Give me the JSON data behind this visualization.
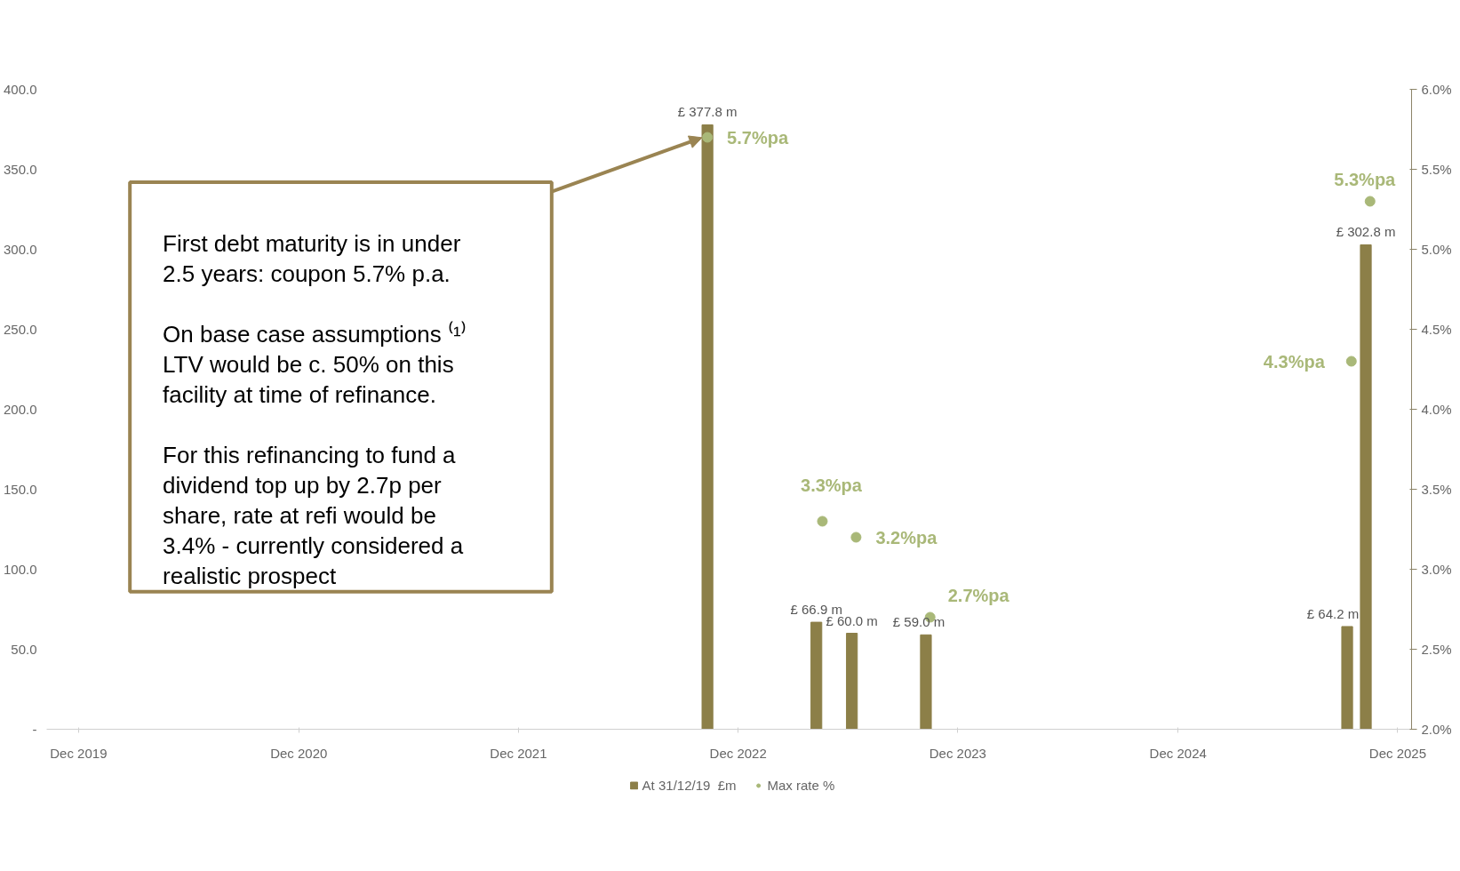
{
  "chart_data": {
    "type": "bar",
    "xlim": [
      "2019-11-08",
      "2026-01-23"
    ],
    "xticks": [
      {
        "value": "2019-12-31",
        "label": "Dec 2019"
      },
      {
        "value": "2020-12-31",
        "label": "Dec 2020"
      },
      {
        "value": "2021-12-31",
        "label": "Dec 2021"
      },
      {
        "value": "2022-12-31",
        "label": "Dec 2022"
      },
      {
        "value": "2023-12-31",
        "label": "Dec 2023"
      },
      {
        "value": "2024-12-31",
        "label": "Dec 2024"
      },
      {
        "value": "2025-12-31",
        "label": "Dec 2025"
      }
    ],
    "ylim": [
      0,
      400
    ],
    "yticks": [
      {
        "value": 0,
        "label": "-"
      },
      {
        "value": 50,
        "label": "50.0"
      },
      {
        "value": 100,
        "label": "100.0"
      },
      {
        "value": 150,
        "label": "150.0"
      },
      {
        "value": 200,
        "label": "200.0"
      },
      {
        "value": 250,
        "label": "250.0"
      },
      {
        "value": 300,
        "label": "300.0"
      },
      {
        "value": 350,
        "label": "350.0"
      },
      {
        "value": 400,
        "label": "400.0"
      }
    ],
    "y2lim": [
      2,
      6
    ],
    "y2ticks": [
      {
        "value": 2,
        "label": "2.0%"
      },
      {
        "value": 2.5,
        "label": "2.5%"
      },
      {
        "value": 3,
        "label": "3.0%"
      },
      {
        "value": 3.5,
        "label": "3.5%"
      },
      {
        "value": 4,
        "label": "4.0%"
      },
      {
        "value": 4.5,
        "label": "4.5%"
      },
      {
        "value": 5,
        "label": "5.0%"
      },
      {
        "value": 5.5,
        "label": "5.5%"
      },
      {
        "value": 6,
        "label": "6.0%"
      }
    ],
    "series": [
      {
        "name": "At 31/12/19  £m",
        "color": "#8c7f48",
        "x": [
          "2022-11-10",
          "2023-05-10",
          "2023-07-08",
          "2023-11-08",
          "2025-10-08",
          "2025-11-08"
        ],
        "values": [
          377.8,
          66.9,
          60.0,
          59.0,
          64.2,
          302.8
        ],
        "value_labels": [
          "£ 377.8 m",
          "£ 66.9 m",
          "£ 60.0 m",
          "£ 59.0 m",
          "£ 64.2 m",
          "£ 302.8 m"
        ]
      },
      {
        "name": "Max rate %",
        "type": "scatter",
        "axis": "y2",
        "color": "#a9b878",
        "x": [
          "2022-11-10",
          "2023-05-20",
          "2023-07-15",
          "2023-11-15",
          "2025-10-15",
          "2025-11-15"
        ],
        "values": [
          5.7,
          3.3,
          3.2,
          2.7,
          4.3,
          5.3
        ],
        "value_labels": [
          "5.7%pa",
          "3.3%pa",
          "3.2%pa",
          "2.7%pa",
          "4.3%pa",
          "5.3%pa"
        ]
      }
    ],
    "annotations": [
      "First debt maturity is in under",
      "2.5 years: coupon 5.7% p.a.",
      "On base case assumptions ⁽¹⁾",
      "LTV would be c. 50% on this",
      "facility at time of refinance.",
      "For this refinancing to fund a",
      "dividend top up by 2.7p per",
      "share, rate at refi would be",
      "3.4% - currently considered a",
      "realistic prospect"
    ],
    "marker": "circle",
    "grid": false,
    "legend": "bottom"
  }
}
